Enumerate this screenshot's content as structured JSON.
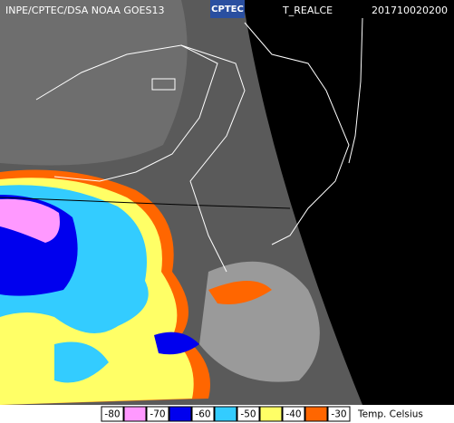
{
  "header": {
    "source": "INPE/CPTEC/DSA NOAA GOES13",
    "logo": "CPTEC",
    "product": "T_REALCE",
    "timestamp": "201710020200"
  },
  "legend": {
    "labels": [
      -80,
      -70,
      -60,
      -50,
      -40,
      -30
    ],
    "colors": [
      "#ff99ff",
      "#0000ee",
      "#33ccff",
      "#ffff66",
      "#ff6600"
    ],
    "unit": "Temp. Celsius"
  }
}
